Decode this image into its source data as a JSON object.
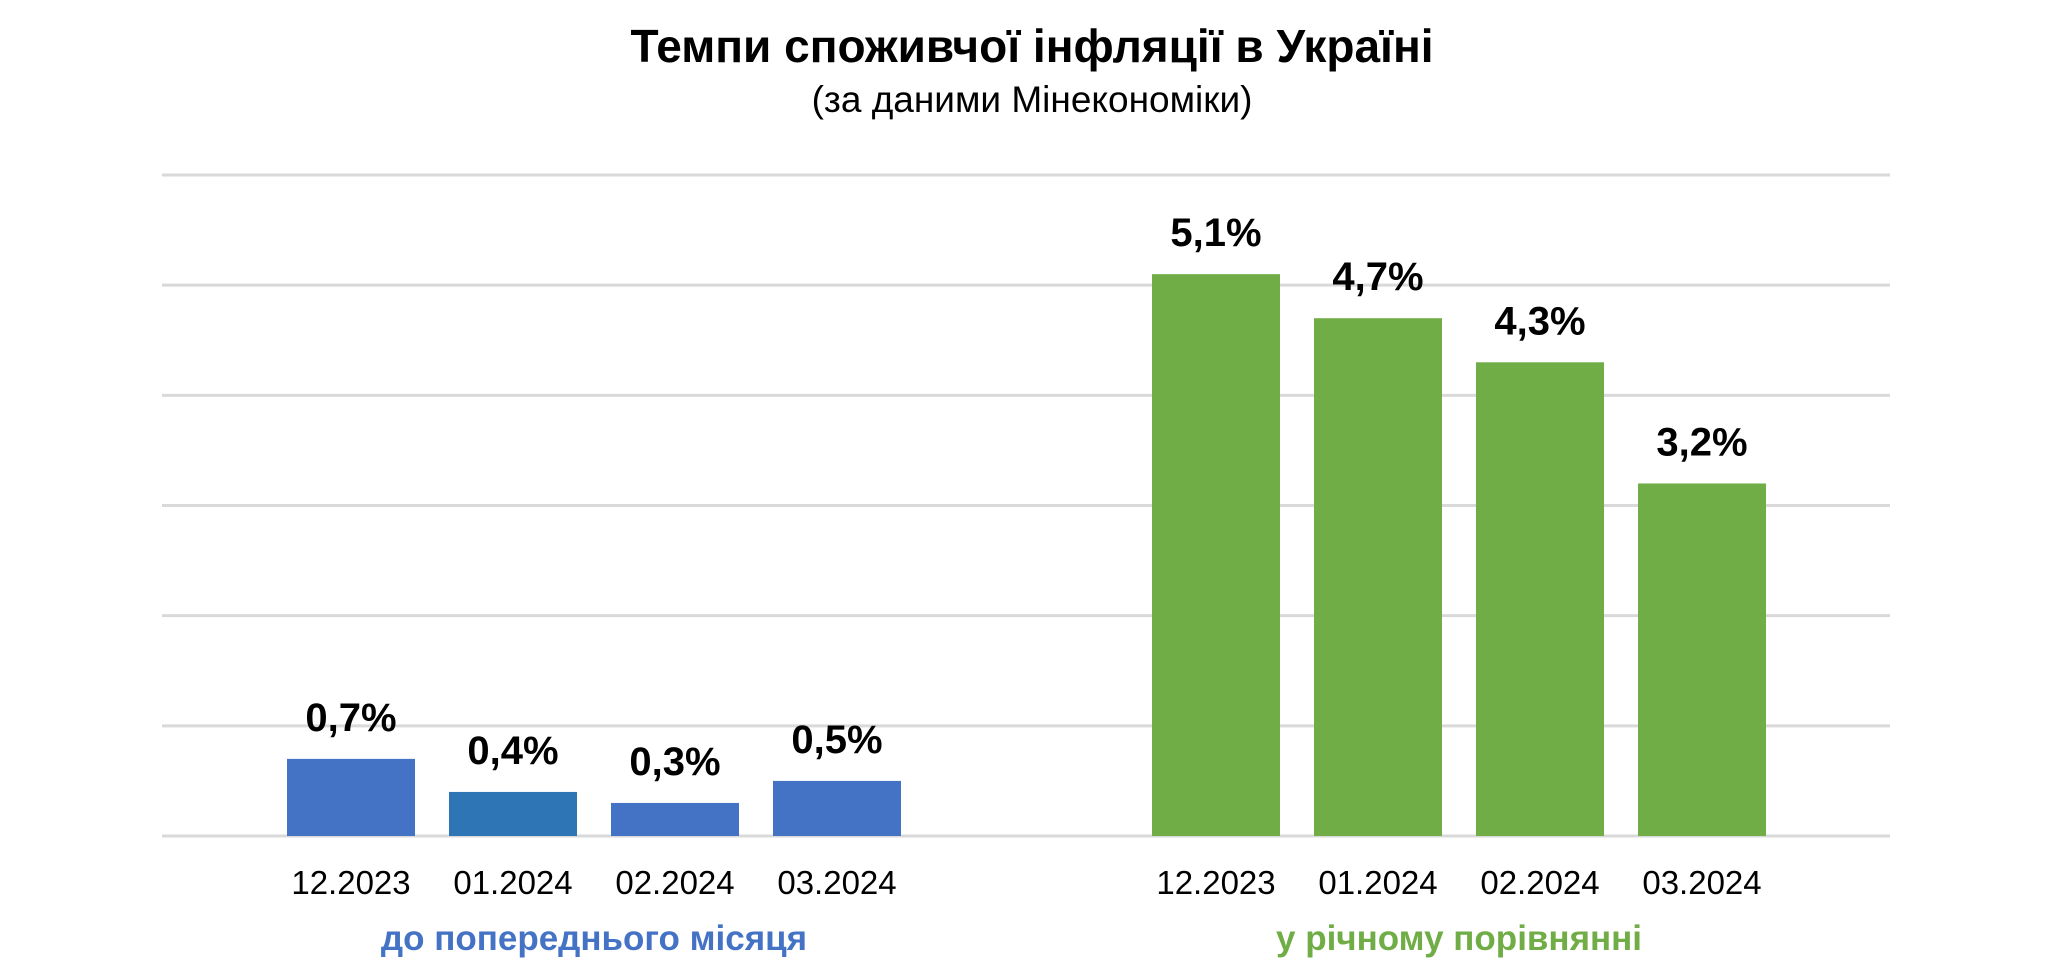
{
  "chart_data": {
    "type": "bar",
    "title": "Темпи споживчої інфляції в Україні",
    "subtitle": "(за даними Мінекономіки)",
    "ylim": [
      0,
      6
    ],
    "grid": true,
    "legend": "none",
    "groups": [
      {
        "name": "до попереднього місяця",
        "color": "#4472c4",
        "categories": [
          "12.2023",
          "01.2024",
          "02.2024",
          "03.2024"
        ],
        "values": [
          0.7,
          0.4,
          0.3,
          0.5
        ],
        "labels": [
          "0,7%",
          "0,4%",
          "0,3%",
          "0,5%"
        ],
        "bar_colors": [
          "#4472c4",
          "#2e75b6",
          "#4472c4",
          "#4472c4"
        ]
      },
      {
        "name": "у річному порівнянні",
        "color": "#70ad47",
        "categories": [
          "12.2023",
          "01.2024",
          "02.2024",
          "03.2024"
        ],
        "values": [
          5.1,
          4.7,
          4.3,
          3.2
        ],
        "labels": [
          "5,1%",
          "4,7%",
          "4,3%",
          "3,2%"
        ],
        "bar_colors": [
          "#70ad47",
          "#70ad47",
          "#70ad47",
          "#70ad47"
        ]
      }
    ]
  }
}
